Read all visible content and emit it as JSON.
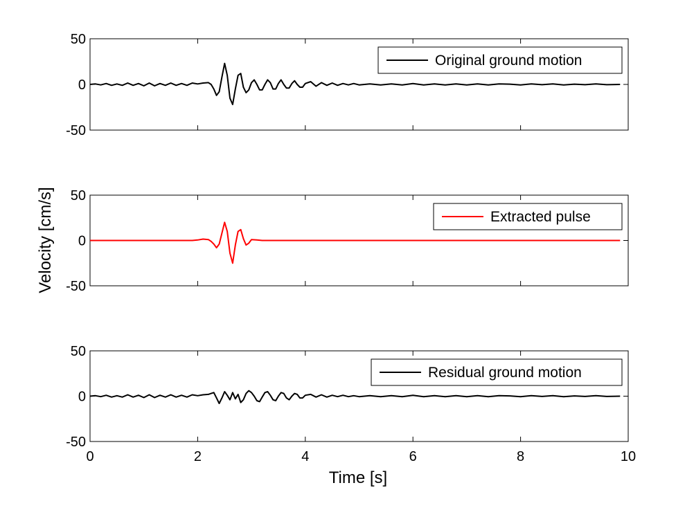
{
  "figure": {
    "xlabel": "Time [s]",
    "ylabel": "Velocity [cm/s]"
  },
  "chart_data": [
    {
      "type": "line",
      "name": "original",
      "xlim": [
        0,
        10
      ],
      "ylim": [
        -50,
        50
      ],
      "xticks": [
        0,
        2,
        4,
        6,
        8,
        10
      ],
      "yticks": [
        -50,
        0,
        50
      ],
      "show_xtick_labels": false,
      "grid": false,
      "legend": "top-right",
      "series": [
        {
          "name": "Original ground motion",
          "color": "#000000",
          "x": [
            0,
            0.1,
            0.2,
            0.3,
            0.4,
            0.5,
            0.6,
            0.7,
            0.8,
            0.9,
            1.0,
            1.1,
            1.2,
            1.3,
            1.4,
            1.5,
            1.6,
            1.7,
            1.8,
            1.9,
            2.0,
            2.1,
            2.2,
            2.25,
            2.3,
            2.35,
            2.4,
            2.45,
            2.5,
            2.55,
            2.6,
            2.65,
            2.7,
            2.75,
            2.8,
            2.85,
            2.9,
            2.95,
            3.0,
            3.05,
            3.1,
            3.15,
            3.2,
            3.25,
            3.3,
            3.35,
            3.4,
            3.45,
            3.5,
            3.55,
            3.6,
            3.65,
            3.7,
            3.75,
            3.8,
            3.85,
            3.9,
            3.95,
            4.0,
            4.1,
            4.2,
            4.3,
            4.4,
            4.5,
            4.6,
            4.7,
            4.8,
            4.9,
            5.0,
            5.2,
            5.4,
            5.6,
            5.8,
            6.0,
            6.2,
            6.4,
            6.6,
            6.8,
            7.0,
            7.2,
            7.4,
            7.6,
            7.8,
            8.0,
            8.2,
            8.4,
            8.6,
            8.8,
            9.0,
            9.2,
            9.4,
            9.6,
            9.85
          ],
          "y": [
            0,
            0.5,
            -0.5,
            1,
            -1,
            0.5,
            -1,
            1.5,
            -1,
            1,
            -1.5,
            1.5,
            -1.5,
            1,
            -1,
            1.5,
            -1,
            1,
            -1,
            1.5,
            0.5,
            1.5,
            2,
            0,
            -5,
            -12,
            -8,
            8,
            23,
            10,
            -15,
            -22,
            -5,
            10,
            12,
            -3,
            -9,
            -6,
            2,
            5,
            0,
            -6,
            -6,
            0,
            5,
            2,
            -5,
            -5,
            1,
            5,
            0,
            -4,
            -4,
            1,
            4,
            0,
            -3,
            -3,
            1,
            3,
            -2,
            2,
            -1,
            1.5,
            -1,
            1,
            -0.5,
            1,
            -0.5,
            0.5,
            -0.5,
            0.5,
            -0.5,
            1,
            -0.5,
            0.5,
            -0.5,
            0.5,
            -0.5,
            0.5,
            -0.5,
            0.5,
            0.3,
            -0.5,
            0.5,
            -0.3,
            0.5,
            -0.5,
            0.3,
            -0.3,
            0.5,
            -0.3,
            0
          ]
        }
      ]
    },
    {
      "type": "line",
      "name": "pulse",
      "xlim": [
        0,
        10
      ],
      "ylim": [
        -50,
        50
      ],
      "xticks": [
        0,
        2,
        4,
        6,
        8,
        10
      ],
      "yticks": [
        -50,
        0,
        50
      ],
      "show_xtick_labels": false,
      "grid": false,
      "legend": "top-right",
      "series": [
        {
          "name": "Extracted pulse",
          "color": "#ff0000",
          "x": [
            0,
            1.9,
            2.0,
            2.1,
            2.2,
            2.25,
            2.3,
            2.35,
            2.4,
            2.45,
            2.5,
            2.55,
            2.6,
            2.65,
            2.7,
            2.75,
            2.8,
            2.85,
            2.9,
            2.95,
            3.0,
            3.1,
            3.2,
            9.85
          ],
          "y": [
            0,
            0,
            0.5,
            1.5,
            1,
            -1,
            -4,
            -8,
            -4,
            8,
            20,
            10,
            -14,
            -25,
            -5,
            10,
            12,
            2,
            -5,
            -3,
            1,
            0.5,
            0,
            0
          ]
        }
      ]
    },
    {
      "type": "line",
      "name": "residual",
      "xlim": [
        0,
        10
      ],
      "ylim": [
        -50,
        50
      ],
      "xticks": [
        0,
        2,
        4,
        6,
        8,
        10
      ],
      "yticks": [
        -50,
        0,
        50
      ],
      "show_xtick_labels": true,
      "grid": false,
      "legend": "top-right",
      "series": [
        {
          "name": "Residual ground motion",
          "color": "#000000",
          "x": [
            0,
            0.1,
            0.2,
            0.3,
            0.4,
            0.5,
            0.6,
            0.7,
            0.8,
            0.9,
            1.0,
            1.1,
            1.2,
            1.3,
            1.4,
            1.5,
            1.6,
            1.7,
            1.8,
            1.9,
            2.0,
            2.1,
            2.2,
            2.25,
            2.3,
            2.35,
            2.4,
            2.45,
            2.5,
            2.55,
            2.6,
            2.65,
            2.7,
            2.75,
            2.8,
            2.85,
            2.9,
            2.95,
            3.0,
            3.05,
            3.1,
            3.15,
            3.2,
            3.25,
            3.3,
            3.35,
            3.4,
            3.45,
            3.5,
            3.55,
            3.6,
            3.65,
            3.7,
            3.75,
            3.8,
            3.85,
            3.9,
            3.95,
            4.0,
            4.1,
            4.2,
            4.3,
            4.4,
            4.5,
            4.6,
            4.7,
            4.8,
            4.9,
            5.0,
            5.2,
            5.4,
            5.6,
            5.8,
            6.0,
            6.2,
            6.4,
            6.6,
            6.8,
            7.0,
            7.2,
            7.4,
            7.6,
            7.8,
            8.0,
            8.2,
            8.4,
            8.6,
            8.8,
            9.0,
            9.2,
            9.4,
            9.6,
            9.85
          ],
          "y": [
            0,
            0.5,
            -0.5,
            1,
            -1,
            0.5,
            -1,
            1.5,
            -1,
            1,
            -1.5,
            1.5,
            -1.5,
            1,
            -1,
            1.5,
            -1,
            1,
            -1,
            1.5,
            0.5,
            1.5,
            2,
            3,
            4,
            -2,
            -8,
            -2,
            5,
            1,
            -4,
            4,
            -3,
            2,
            -7,
            -4,
            3,
            6,
            4,
            0,
            -5,
            -6,
            -1,
            4,
            5,
            1,
            -4,
            -5,
            0,
            4,
            3,
            -2,
            -4,
            0,
            3,
            2,
            -2,
            -2,
            1,
            2,
            -1,
            1.5,
            -1,
            1,
            -0.5,
            1,
            -0.5,
            0.5,
            -0.5,
            0.5,
            -0.5,
            0.5,
            -0.5,
            1,
            -0.5,
            0.5,
            -0.5,
            0.5,
            -0.5,
            0.5,
            -0.5,
            0.5,
            0.3,
            -0.5,
            0.5,
            -0.3,
            0.5,
            -0.5,
            0.3,
            -0.3,
            0.5,
            -0.3,
            0
          ]
        }
      ]
    }
  ]
}
